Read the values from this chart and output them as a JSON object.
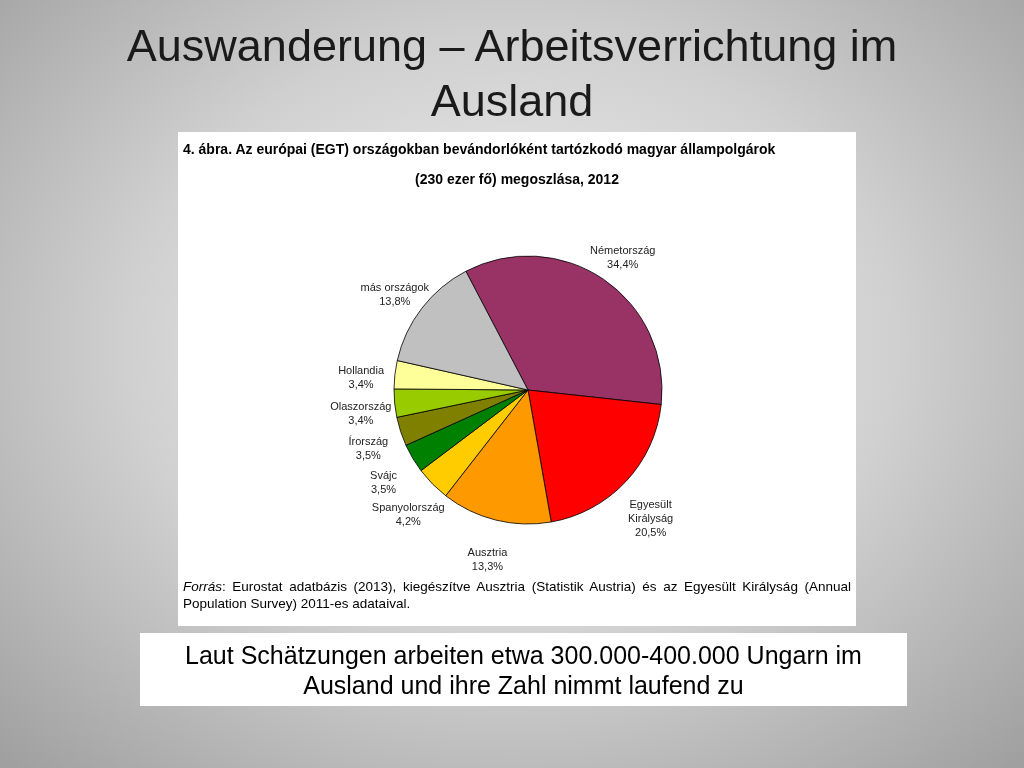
{
  "chart_data": {
    "type": "pie",
    "title": "Auswanderung – Arbeitsverrichtung im Ausland",
    "subtitle": "4. ábra. Az európai (EGT) országokban bevándorlóként tartózkodó magyar állampolgárok (230 ezer fő) megoszlása, 2012",
    "categories": [
      "Németország",
      "Egyesült Királyság",
      "Ausztria",
      "Spanyolország",
      "Svájc",
      "Írország",
      "Olaszország",
      "Hollandia",
      "más országok"
    ],
    "values": [
      34.4,
      20.5,
      13.3,
      4.2,
      3.5,
      3.5,
      3.4,
      3.4,
      13.8
    ],
    "colors": [
      "#993366",
      "#ff0000",
      "#ff9900",
      "#ffcc00",
      "#008000",
      "#808000",
      "#99cc00",
      "#ffff99",
      "#c0c0c0"
    ],
    "value_labels": [
      "34,4%",
      "20,5%",
      "13,3%",
      "4,2%",
      "3,5%",
      "3,5%",
      "3,4%",
      "3,4%",
      "13,8%"
    ],
    "annotations": [
      "Forrás: Eurostat adatbázis (2013), kiegészítve Ausztria (Statistik Austria) és az Egyesült Királyság (Annual Population Survey) 2011-es adataival.",
      "Laut Schätzungen arbeiten etwa 300.000-400.000 Ungarn im Ausland und ihre Zahl nimmt laufend zu"
    ]
  }
}
